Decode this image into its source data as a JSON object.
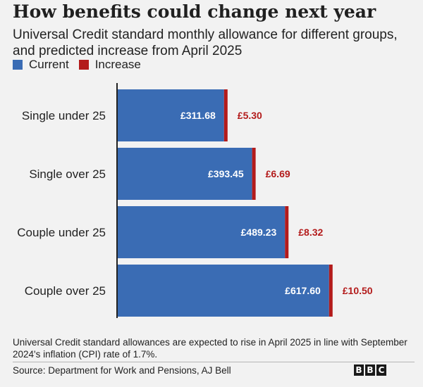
{
  "title": "How benefits could change next year",
  "subtitle": "Universal Credit standard monthly allowance for different groups, and predicted increase from April 2025",
  "legend": [
    {
      "label": "Current",
      "color": "#3a6cb4"
    },
    {
      "label": "Increase",
      "color": "#b31b1b"
    }
  ],
  "chart_data": {
    "type": "bar",
    "orientation": "horizontal",
    "stacked": true,
    "categories": [
      "Single under 25",
      "Single over 25",
      "Couple under 25",
      "Couple over 25"
    ],
    "series": [
      {
        "name": "Current",
        "values": [
          311.68,
          393.45,
          489.23,
          617.6
        ],
        "labels": [
          "£311.68",
          "£393.45",
          "£489.23",
          "£617.60"
        ],
        "color": "#3a6cb4"
      },
      {
        "name": "Increase",
        "values": [
          5.3,
          6.69,
          8.32,
          10.5
        ],
        "labels": [
          "£5.30",
          "£6.69",
          "£8.32",
          "£10.50"
        ],
        "color": "#b31b1b"
      }
    ],
    "xlim": [
      0,
      630
    ],
    "grid": false,
    "legend_position": "top-left"
  },
  "footnote": "Universal Credit standard allowances are expected to rise in April 2025 in line with September 2024's inflation (CPI) rate of 1.7%.",
  "source": "Source: Department for Work and Pensions, AJ Bell",
  "logo": [
    "B",
    "B",
    "C"
  ]
}
